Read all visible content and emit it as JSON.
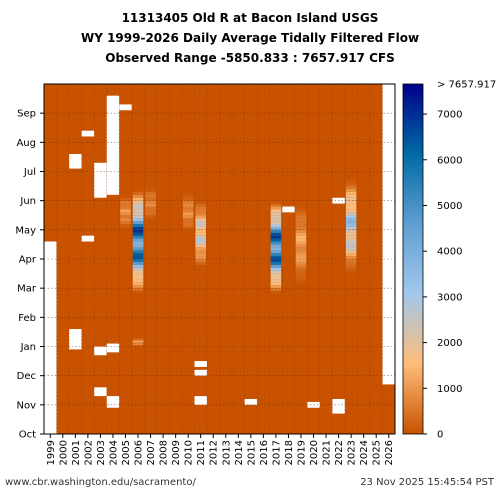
{
  "title_lines": [
    "11313405 Old R at Bacon Island USGS",
    "WY 1999-2026 Daily Average Tidally Filtered Flow",
    "Observed Range -5850.833 : 7657.917 CFS"
  ],
  "footer": {
    "source": "www.cbr.washington.edu/sacramento/",
    "timestamp": "23 Nov 2025 15:45:54 PST"
  },
  "chart_data": {
    "type": "heatmap",
    "title": "11313405 Old R at Bacon Island USGS",
    "subtitle": "WY 1999-2026 Daily Average Tidally Filtered Flow",
    "range_text": "Observed Range -5850.833 : 7657.917 CFS",
    "x": [
      "1999",
      "2000",
      "2001",
      "2002",
      "2003",
      "2004",
      "2005",
      "2006",
      "2007",
      "2008",
      "2009",
      "2010",
      "2011",
      "2012",
      "2013",
      "2014",
      "2015",
      "2016",
      "2017",
      "2018",
      "2019",
      "2020",
      "2021",
      "2022",
      "2023",
      "2024",
      "2025",
      "2026"
    ],
    "y": [
      "Oct",
      "Nov",
      "Dec",
      "Jan",
      "Feb",
      "Mar",
      "Apr",
      "May",
      "Jun",
      "Jul",
      "Aug",
      "Sep"
    ],
    "xlabel": "",
    "ylabel": "",
    "colorbar": {
      "ticks": [
        0,
        1000,
        2000,
        3000,
        4000,
        5000,
        6000,
        7000
      ],
      "max_label": "> 7657.917",
      "range": [
        0,
        7657.917
      ],
      "colors": [
        "#c85200",
        "#ffbc79",
        "#a2c8ec",
        "#5f9ed1",
        "#006ba4",
        "#00008b"
      ]
    },
    "background_color": "#c85200",
    "grid": true,
    "missing_color": "#ffffff",
    "high_flow": [
      {
        "year": "2006",
        "start_month": 4.8,
        "end_month": 8.4,
        "peak": 7600
      },
      {
        "year": "2006",
        "start_month": 3.0,
        "end_month": 3.3,
        "peak": 1400
      },
      {
        "year": "2005",
        "start_month": 7.0,
        "end_month": 8.2,
        "peak": 1200
      },
      {
        "year": "2007",
        "start_month": 7.3,
        "end_month": 8.5,
        "peak": 900
      },
      {
        "year": "2010",
        "start_month": 6.9,
        "end_month": 8.3,
        "peak": 1100
      },
      {
        "year": "2011",
        "start_month": 5.7,
        "end_month": 8.0,
        "peak": 3000
      },
      {
        "year": "2017",
        "start_month": 4.8,
        "end_month": 8.0,
        "peak": 7600
      },
      {
        "year": "2019",
        "start_month": 5.1,
        "end_month": 7.9,
        "peak": 1500
      },
      {
        "year": "2023",
        "start_month": 5.5,
        "end_month": 8.8,
        "peak": 3800
      }
    ],
    "missing": [
      {
        "year": "1999",
        "start_month": 0.0,
        "end_month": 6.6
      },
      {
        "year": "2001",
        "start_month": 2.9,
        "end_month": 3.6
      },
      {
        "year": "2001",
        "start_month": 9.1,
        "end_month": 9.6
      },
      {
        "year": "2002",
        "start_month": 6.6,
        "end_month": 6.8
      },
      {
        "year": "2002",
        "start_month": 10.2,
        "end_month": 10.4
      },
      {
        "year": "2003",
        "start_month": 1.3,
        "end_month": 1.6
      },
      {
        "year": "2003",
        "start_month": 2.7,
        "end_month": 3.0
      },
      {
        "year": "2003",
        "start_month": 8.1,
        "end_month": 9.3
      },
      {
        "year": "2004",
        "start_month": 0.9,
        "end_month": 1.3
      },
      {
        "year": "2004",
        "start_month": 2.8,
        "end_month": 3.1
      },
      {
        "year": "2004",
        "start_month": 8.2,
        "end_month": 11.6
      },
      {
        "year": "2005",
        "start_month": 11.1,
        "end_month": 11.3
      },
      {
        "year": "2011",
        "start_month": 2.0,
        "end_month": 2.2
      },
      {
        "year": "2011",
        "start_month": 2.3,
        "end_month": 2.5
      },
      {
        "year": "2011",
        "start_month": 1.0,
        "end_month": 1.3
      },
      {
        "year": "2015",
        "start_month": 1.0,
        "end_month": 1.2
      },
      {
        "year": "2018",
        "start_month": 7.6,
        "end_month": 7.8
      },
      {
        "year": "2020",
        "start_month": 0.9,
        "end_month": 1.1
      },
      {
        "year": "2022",
        "start_month": 0.7,
        "end_month": 1.2
      },
      {
        "year": "2022",
        "start_month": 7.9,
        "end_month": 8.1
      },
      {
        "year": "2026",
        "start_month": 1.7,
        "end_month": 12.0
      }
    ]
  }
}
